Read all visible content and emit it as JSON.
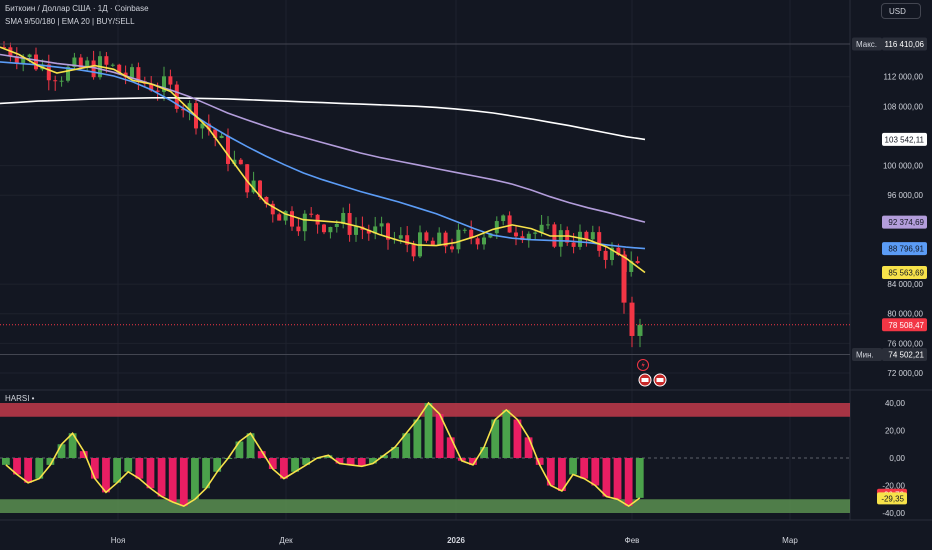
{
  "header": {
    "title": "Биткоин / Доллар США · 1Д · Coinbase",
    "indicators": "SMA 9/50/180 | EMA 20 | BUY/SELL",
    "currency": "USD"
  },
  "colors": {
    "background": "#131722",
    "up": "#26a69a",
    "up_candle": "#4ba24b",
    "down": "#f23645",
    "sma9": "#f7e24a",
    "sma50": "#5b9cf6",
    "sma180": "#ffffff",
    "ema20": "#b39ddb",
    "harsi_overbought": "#c2394a",
    "harsi_oversold": "#5a8f50"
  },
  "chart_data": [
    {
      "type": "candlestick",
      "title": "Биткоин / Доллар США · 1Д · Coinbase",
      "x_tick_labels": [
        "Ноя",
        "Дек",
        "2026",
        "Фев",
        "Мар"
      ],
      "y_tick_labels": [
        "112 000,00",
        "108 000,00",
        "100 000,00",
        "96 000,00",
        "84 000,00",
        "80 000,00",
        "76 000,00",
        "72 000,00"
      ],
      "y_ticks": [
        112000,
        108000,
        100000,
        96000,
        84000,
        80000,
        76000,
        72000
      ],
      "ylim": [
        70000,
        120000
      ],
      "price_tags": [
        {
          "label": "Макс.",
          "value_text": "116 410,06",
          "value": 116410.06,
          "color": "#2a2e39"
        },
        {
          "label": "",
          "value_text": "103 542,11",
          "value": 103542.11,
          "color": "#ffffff"
        },
        {
          "label": "",
          "value_text": "92 374,69",
          "value": 92374.69,
          "color": "#b39ddb"
        },
        {
          "label": "",
          "value_text": "88 796,91",
          "value": 88796.91,
          "color": "#5b9cf6"
        },
        {
          "label": "",
          "value_text": "85 563,69",
          "value": 85563.69,
          "color": "#f7e24a"
        },
        {
          "label": "",
          "value_text": "78 508,47",
          "value": 78508.47,
          "color": "#f23645"
        },
        {
          "label": "Мин.",
          "value_text": "74 502,21",
          "value": 74502.21,
          "color": "#2a2e39"
        }
      ],
      "series": [
        {
          "name": "SMA 180",
          "values": [
            108400,
            108550,
            108700,
            108800,
            108900,
            109000,
            109050,
            109100,
            109150,
            109150,
            109100,
            109050,
            109000,
            108900,
            108800,
            108700,
            108600,
            108500,
            108400,
            108300,
            108200,
            108100,
            108000,
            107850,
            107650,
            107400,
            107100,
            106700,
            106300,
            105850,
            105400,
            104900,
            104400,
            103900,
            103542
          ]
        },
        {
          "name": "EMA 20",
          "values": [
            115000,
            114600,
            114200,
            113800,
            113500,
            113200,
            112600,
            111800,
            111000,
            110200,
            109300,
            108200,
            107100,
            106200,
            105300,
            104500,
            103800,
            103100,
            102400,
            101700,
            101100,
            100600,
            100100,
            99600,
            99100,
            98600,
            98100,
            97500,
            96700,
            95800,
            95000,
            94300,
            93700,
            93000,
            92375
          ]
        },
        {
          "name": "SMA 50",
          "values": [
            114000,
            113800,
            113600,
            113300,
            113000,
            112600,
            112100,
            111300,
            110200,
            108800,
            107200,
            105500,
            104000,
            102600,
            101300,
            100100,
            99000,
            98100,
            97300,
            96500,
            95800,
            95100,
            94300,
            93500,
            92500,
            91500,
            90600,
            90200,
            90000,
            89900,
            89800,
            89600,
            89300,
            89000,
            88797
          ]
        },
        {
          "name": "SMA 9",
          "values": [
            116000,
            115000,
            113500,
            112500,
            113000,
            113500,
            113000,
            111500,
            111000,
            110000,
            107500,
            105000,
            101500,
            98000,
            95000,
            93500,
            92700,
            92500,
            92300,
            91700,
            90700,
            89900,
            89300,
            89200,
            89600,
            90400,
            91400,
            92000,
            91500,
            90500,
            90500,
            90000,
            89000,
            87500,
            85564
          ]
        }
      ]
    },
    {
      "type": "bar",
      "title": "HARSI",
      "y_tick_labels": [
        "40,00",
        "20,00",
        "0,00",
        "-20,00",
        "-40,00"
      ],
      "y_ticks": [
        40,
        20,
        0,
        -20,
        -40
      ],
      "ylim": [
        -45,
        45
      ],
      "overbought_band": [
        30,
        40
      ],
      "oversold_band": [
        -30,
        -40
      ],
      "value_tags": [
        {
          "value_text": "-26,72",
          "value": -26.72,
          "color": "#f23645"
        },
        {
          "value_text": "-29,35",
          "value": -29.35,
          "color": "#f7e24a"
        }
      ],
      "series": [
        {
          "name": "HARSI",
          "values": [
            -5,
            -12,
            -18,
            -15,
            -5,
            10,
            18,
            5,
            -15,
            -25,
            -18,
            -10,
            -15,
            -22,
            -28,
            -32,
            -35,
            -30,
            -22,
            -10,
            0,
            12,
            18,
            5,
            -8,
            -15,
            -10,
            -5,
            0,
            2,
            -4,
            -5,
            -6,
            -4,
            2,
            8,
            18,
            28,
            40,
            32,
            15,
            -2,
            -5,
            8,
            28,
            35,
            28,
            15,
            -5,
            -20,
            -24,
            -12,
            -15,
            -20,
            -28,
            -30,
            -35,
            -29
          ]
        }
      ]
    }
  ]
}
